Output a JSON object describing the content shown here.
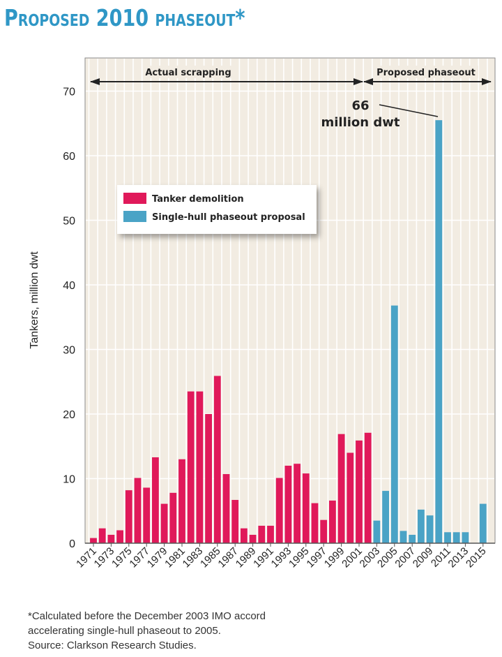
{
  "chart_data": {
    "type": "bar",
    "title": "Proposed 2010 phaseout*",
    "ylabel": "Tankers, million dwt",
    "xlabel": "",
    "ylim": [
      0,
      75
    ],
    "yticks": [
      0,
      10,
      20,
      30,
      40,
      50,
      60,
      70
    ],
    "grid": true,
    "legend_position": "upper-left",
    "x_tick_labels": [
      "1971",
      "1973",
      "1975",
      "1977",
      "1979",
      "1981",
      "1983",
      "1985",
      "1987",
      "1989",
      "1991",
      "1993",
      "1995",
      "1997",
      "1999",
      "2001",
      "2003",
      "2005",
      "2007",
      "2009",
      "2011",
      "2013",
      "2015"
    ],
    "series": [
      {
        "name": "Tanker demolition",
        "color": "#e0195a",
        "x": [
          1971,
          1972,
          1973,
          1974,
          1975,
          1976,
          1977,
          1978,
          1979,
          1980,
          1981,
          1982,
          1983,
          1984,
          1985,
          1986,
          1987,
          1988,
          1989,
          1990,
          1991,
          1992,
          1993,
          1994,
          1995,
          1996,
          1997,
          1998,
          1999,
          2000,
          2001,
          2002
        ],
        "values": [
          0.8,
          2.3,
          1.3,
          2.0,
          8.2,
          10.1,
          8.6,
          13.3,
          6.1,
          7.8,
          13.0,
          23.5,
          23.5,
          20.0,
          25.9,
          10.7,
          6.7,
          2.3,
          1.3,
          2.7,
          2.7,
          10.1,
          12.0,
          12.3,
          10.8,
          6.2,
          3.6,
          6.6,
          16.9,
          14.0,
          15.9,
          17.1
        ]
      },
      {
        "name": "Single-hull phaseout proposal",
        "color": "#4aa3c6",
        "x": [
          2003,
          2004,
          2005,
          2006,
          2007,
          2008,
          2009,
          2010,
          2011,
          2012,
          2013,
          2014,
          2015
        ],
        "values": [
          3.5,
          8.1,
          36.8,
          1.9,
          1.3,
          5.2,
          4.3,
          65.5,
          1.7,
          1.7,
          1.7,
          0,
          6.1
        ]
      }
    ],
    "annotations": {
      "actual_label": "Actual scrapping",
      "proposed_label": "Proposed phaseout",
      "peak_value": "66",
      "peak_unit": "million dwt"
    }
  },
  "footnote": [
    "*Calculated before the December 2003 IMO accord",
    "accelerating single-hull phaseout to 2005.",
    "Source: Clarkson Research Studies."
  ],
  "colors": {
    "title": "#2f97c6",
    "plot_background": "#f2ece2",
    "grid": "#ffffff",
    "legend_background": "#ffffff"
  }
}
